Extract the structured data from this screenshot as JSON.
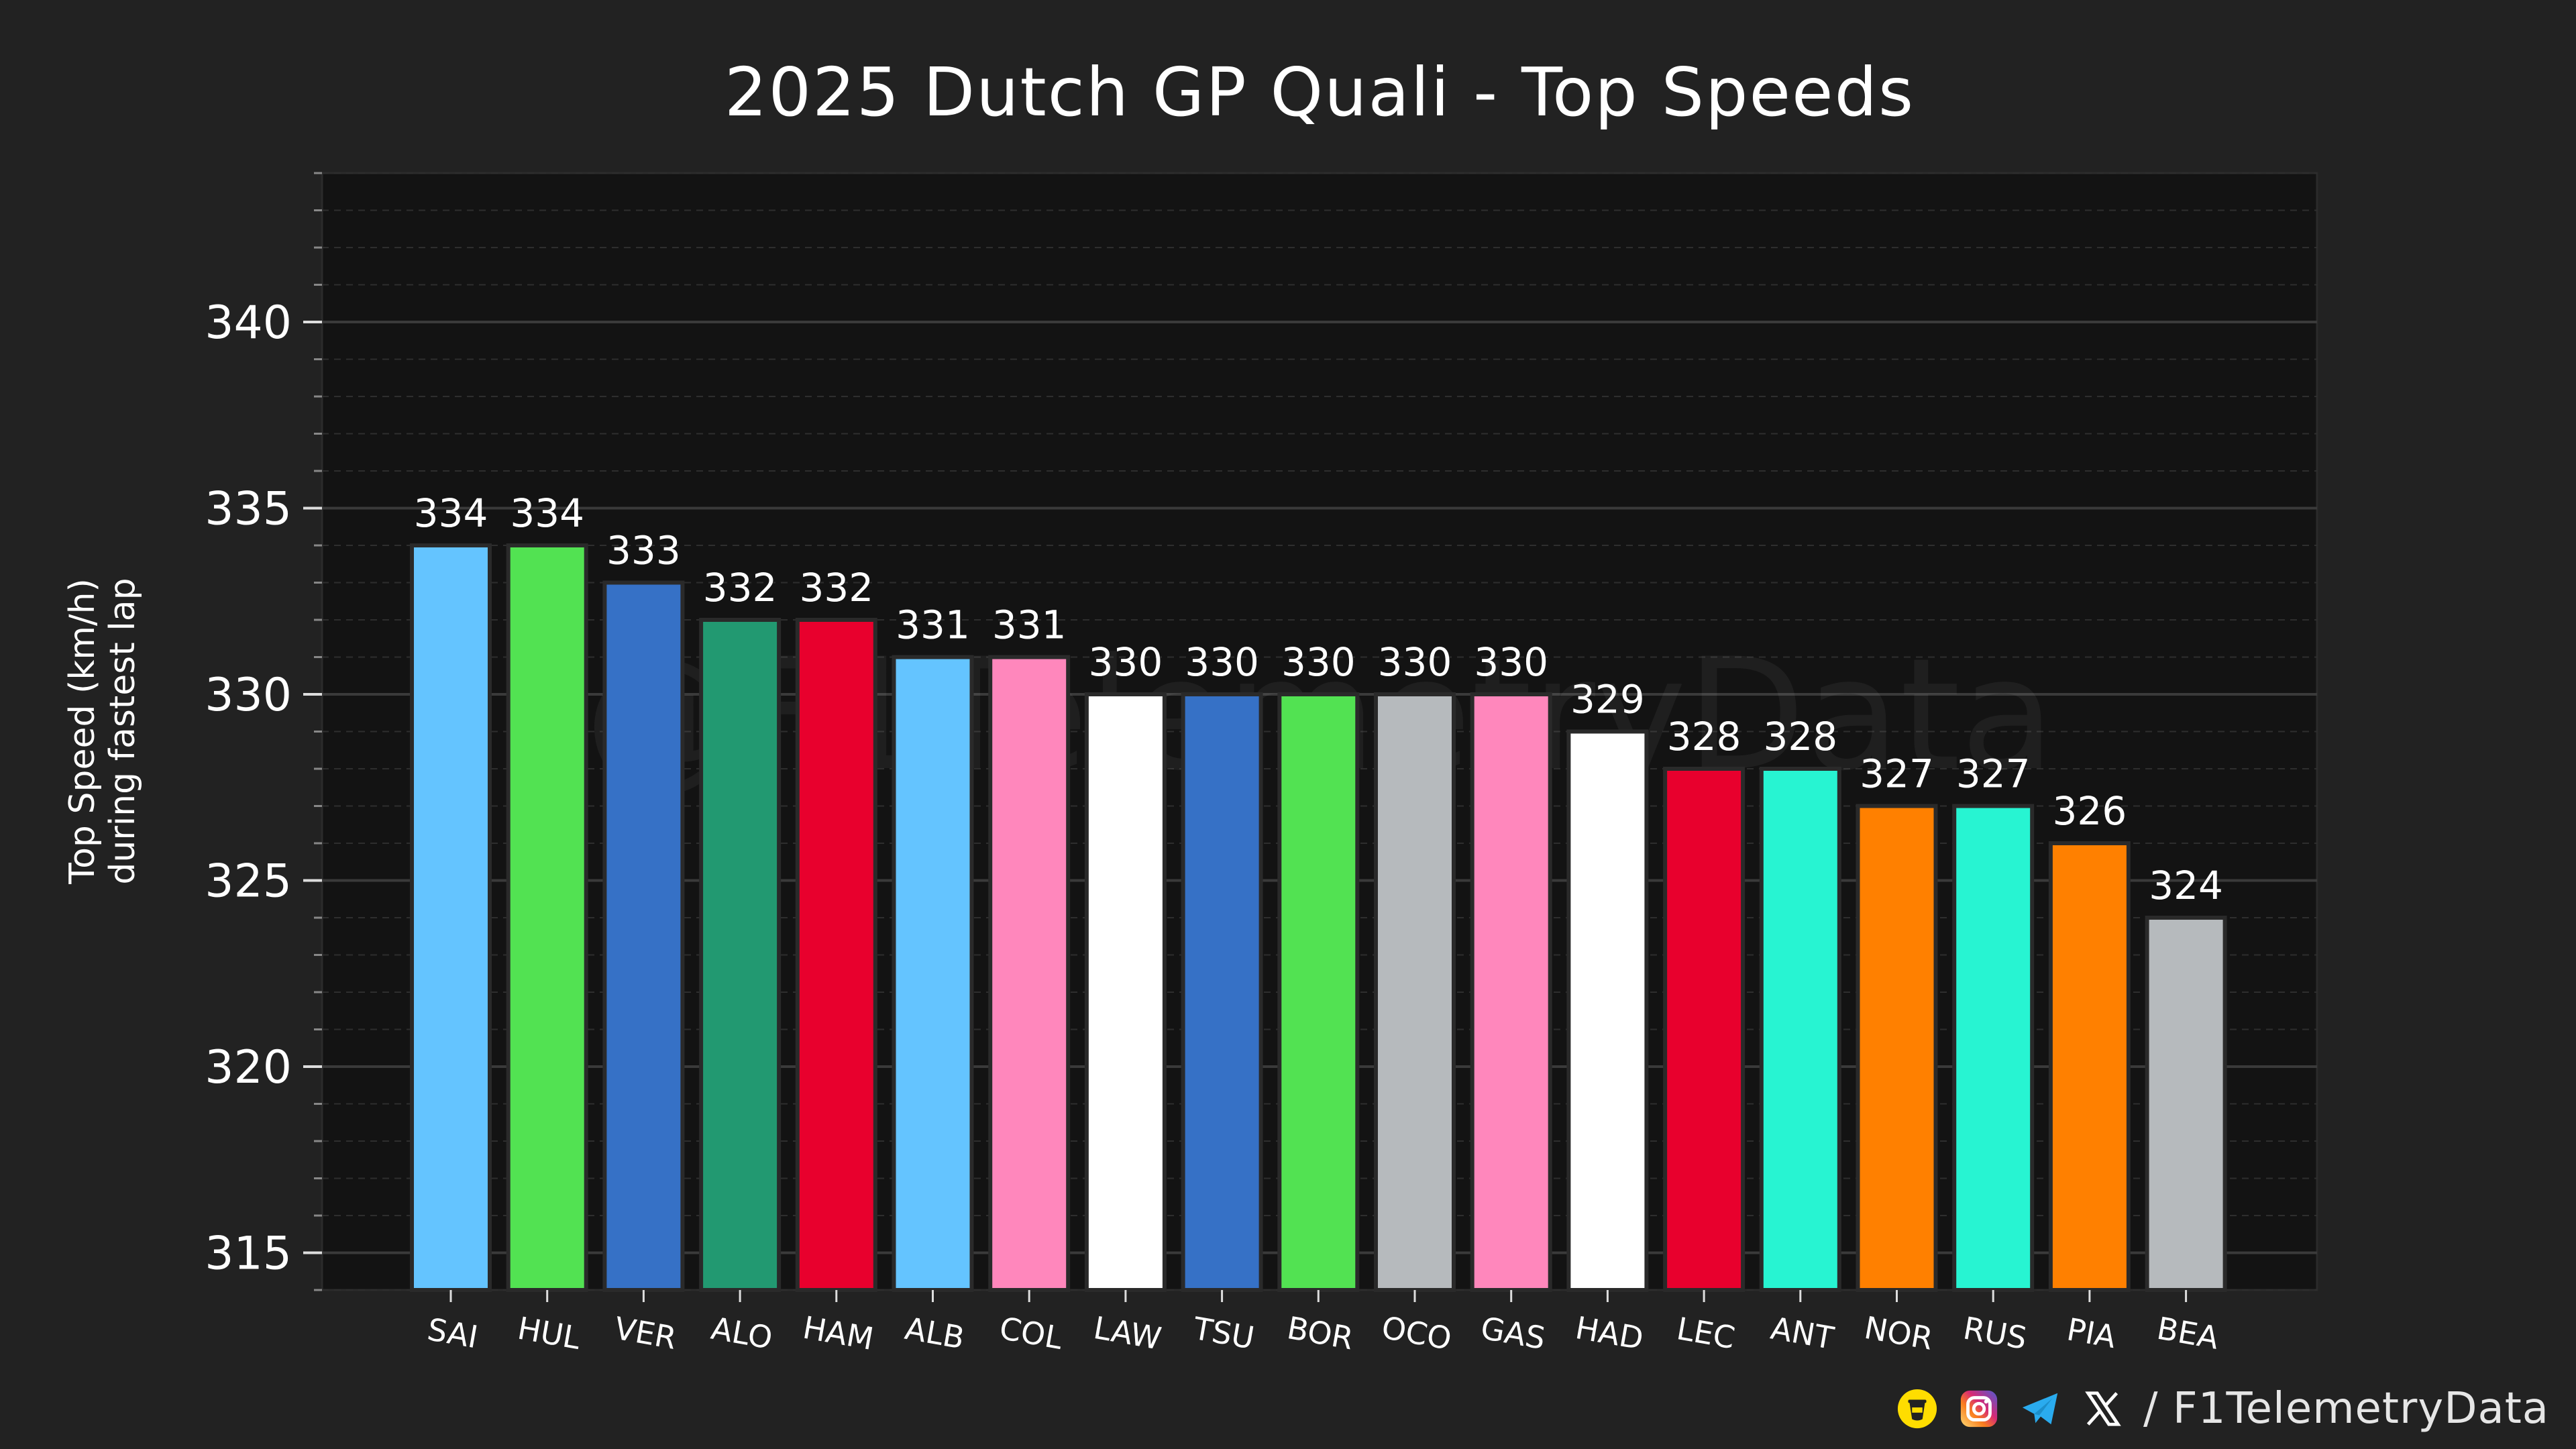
{
  "chart_data": {
    "type": "bar",
    "title": "2025 Dutch GP Quali - Top Speeds",
    "xlabel": "",
    "ylabel": [
      "Top Speed (km/h)",
      "during fastest lap"
    ],
    "categories": [
      "SAI",
      "HUL",
      "VER",
      "ALO",
      "HAM",
      "ALB",
      "COL",
      "LAW",
      "TSU",
      "BOR",
      "OCO",
      "GAS",
      "HAD",
      "LEC",
      "ANT",
      "NOR",
      "RUS",
      "PIA",
      "BEA"
    ],
    "values": [
      334,
      334,
      333,
      332,
      332,
      331,
      331,
      330,
      330,
      330,
      330,
      330,
      329,
      328,
      328,
      327,
      327,
      326,
      324
    ],
    "colors": [
      "#64C4FF",
      "#52E252",
      "#3671C6",
      "#229971",
      "#E8002D",
      "#64C4FF",
      "#FF87BC",
      "#FFFFFF",
      "#3671C6",
      "#52E252",
      "#B6BABD",
      "#FF87BC",
      "#FFFFFF",
      "#E8002D",
      "#27F4D2",
      "#FF8000",
      "#27F4D2",
      "#FF8000",
      "#B6BABD"
    ],
    "ylim": [
      314,
      344
    ],
    "yticks": [
      315,
      320,
      325,
      330,
      335,
      340
    ],
    "grid": true,
    "legend": "none",
    "watermark": "@F1TelemetryData"
  },
  "footer": {
    "handle": "/ F1TelemetryData",
    "icons": [
      "buymeacoffee-icon",
      "instagram-icon",
      "telegram-icon",
      "x-icon"
    ],
    "icon_colors": {
      "coffee": "#FFDD00",
      "instagram": "#E1306C",
      "telegram": "#2AABEE",
      "x": "#FFFFFF"
    }
  },
  "theme": {
    "page_bg": "#222222",
    "plot_bg": "#131313",
    "grid_major": "#3a3a3a",
    "grid_minor": "#2e2e2e",
    "axis": "#2b2b2b"
  }
}
